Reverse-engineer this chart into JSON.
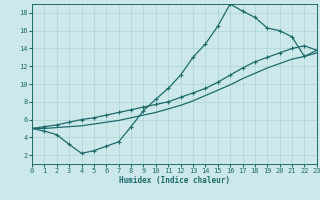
{
  "xlabel": "Humidex (Indice chaleur)",
  "bg_color": "#cce8ea",
  "grid_color": "#aad4d6",
  "line_color": "#1e6b6b",
  "x_min": 0,
  "x_max": 23,
  "y_min": 1,
  "y_max": 19,
  "y_ticks": [
    2,
    4,
    6,
    8,
    10,
    12,
    14,
    16,
    18
  ],
  "x_ticks": [
    0,
    1,
    2,
    3,
    4,
    5,
    6,
    7,
    8,
    9,
    10,
    11,
    12,
    13,
    14,
    15,
    16,
    17,
    18,
    19,
    20,
    21,
    22,
    23
  ],
  "line_peak_x": [
    0,
    1,
    2,
    3,
    4,
    5,
    6,
    7,
    8,
    9,
    10,
    11,
    12,
    13,
    14,
    15,
    16,
    17,
    18,
    19,
    20,
    21,
    22,
    23
  ],
  "line_peak_y": [
    5.0,
    4.7,
    4.3,
    3.2,
    2.2,
    2.5,
    3.0,
    3.5,
    5.2,
    7.0,
    8.3,
    9.5,
    11.0,
    13.0,
    14.5,
    16.5,
    19.0,
    18.2,
    17.5,
    16.3,
    16.0,
    15.3,
    13.1,
    13.8
  ],
  "line_upper_x": [
    0,
    1,
    2,
    3,
    4,
    5,
    6,
    7,
    8,
    9,
    10,
    11,
    12,
    13,
    14,
    15,
    16,
    17,
    18,
    19,
    20,
    21,
    22,
    23
  ],
  "line_upper_y": [
    5.0,
    5.2,
    5.4,
    5.7,
    6.0,
    6.2,
    6.5,
    6.8,
    7.1,
    7.4,
    7.7,
    8.0,
    8.5,
    9.0,
    9.5,
    10.2,
    11.0,
    11.8,
    12.5,
    13.0,
    13.5,
    14.0,
    14.3,
    13.8
  ],
  "line_lower_x": [
    0,
    1,
    2,
    3,
    4,
    5,
    6,
    7,
    8,
    9,
    10,
    11,
    12,
    13,
    14,
    15,
    16,
    17,
    18,
    19,
    20,
    21,
    22,
    23
  ],
  "line_lower_y": [
    5.0,
    5.0,
    5.1,
    5.2,
    5.3,
    5.5,
    5.7,
    5.9,
    6.2,
    6.5,
    6.8,
    7.2,
    7.6,
    8.1,
    8.7,
    9.3,
    9.9,
    10.6,
    11.2,
    11.8,
    12.3,
    12.8,
    13.1,
    13.5
  ]
}
